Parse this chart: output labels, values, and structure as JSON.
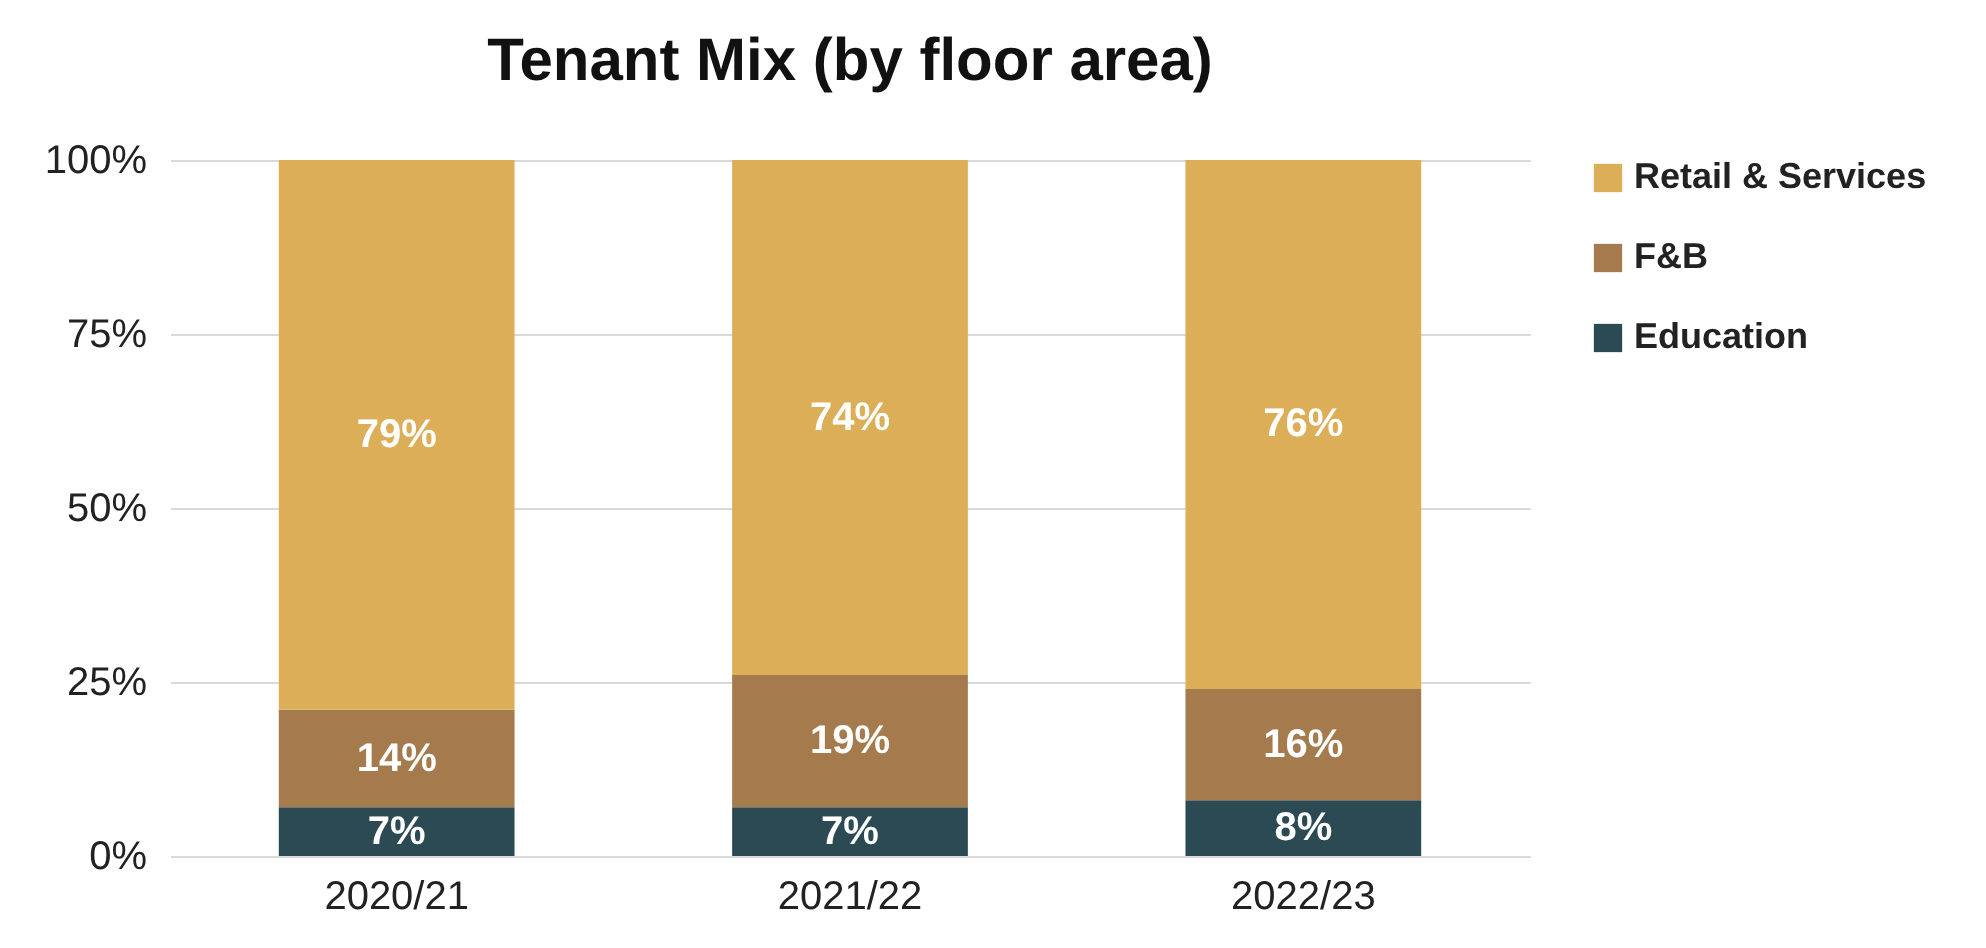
{
  "chart_data": {
    "type": "bar",
    "title": "Tenant Mix (by floor area)",
    "stacked": true,
    "categories": [
      "2020/21",
      "2021/22",
      "2022/23"
    ],
    "series": [
      {
        "name": "Education",
        "color": "#2b4a53",
        "values": [
          7,
          7,
          8
        ],
        "value_labels": [
          "7%",
          "7%",
          "8%"
        ]
      },
      {
        "name": "F&B",
        "color": "#a57a4d",
        "values": [
          14,
          19,
          16
        ],
        "value_labels": [
          "14%",
          "19%",
          "16%"
        ]
      },
      {
        "name": "Retail & Services",
        "color": "#dbae57",
        "values": [
          79,
          74,
          76
        ],
        "value_labels": [
          "79%",
          "74%",
          "76%"
        ]
      }
    ],
    "ylim": [
      0,
      100
    ],
    "yticks": [
      {
        "value": 0,
        "label": "0%"
      },
      {
        "value": 25,
        "label": "25%"
      },
      {
        "value": 50,
        "label": "50%"
      },
      {
        "value": 75,
        "label": "75%"
      },
      {
        "value": 100,
        "label": "100%"
      }
    ],
    "grid": "y",
    "legend": "right"
  }
}
